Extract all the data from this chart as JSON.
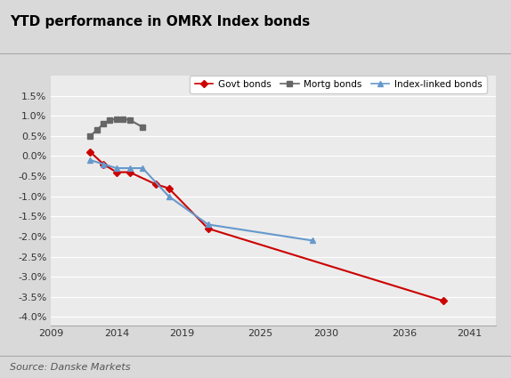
{
  "title": "YTD performance in OMRX Index bonds",
  "source": "Source: Danske Markets",
  "xlim": [
    2009,
    2043
  ],
  "ylim": [
    -0.042,
    0.02
  ],
  "xticks": [
    2009,
    2014,
    2019,
    2025,
    2030,
    2036,
    2041
  ],
  "yticks": [
    -0.04,
    -0.035,
    -0.03,
    -0.025,
    -0.02,
    -0.015,
    -0.01,
    -0.005,
    0.0,
    0.005,
    0.01,
    0.015
  ],
  "govt_bonds": {
    "x": [
      2012,
      2013,
      2014,
      2015,
      2017,
      2018,
      2021,
      2039
    ],
    "y": [
      0.001,
      -0.002,
      -0.004,
      -0.004,
      -0.007,
      -0.008,
      -0.018,
      -0.036
    ],
    "color": "#cc0000",
    "marker": "D",
    "markersize": 4,
    "linewidth": 1.5,
    "label": "Govt bonds"
  },
  "mortg_bonds": {
    "x": [
      2012,
      2012.5,
      2013,
      2013.5,
      2014,
      2014.5,
      2015,
      2016
    ],
    "y": [
      0.005,
      0.0065,
      0.008,
      0.009,
      0.0092,
      0.0092,
      0.009,
      0.0072
    ],
    "color": "#666666",
    "marker": "s",
    "markersize": 4,
    "linewidth": 1.5,
    "label": "Mortg bonds"
  },
  "index_linked_bonds": {
    "x": [
      2012,
      2013,
      2014,
      2015,
      2016,
      2018,
      2021,
      2029
    ],
    "y": [
      -0.001,
      -0.002,
      -0.003,
      -0.003,
      -0.003,
      -0.01,
      -0.017,
      -0.021
    ],
    "color": "#6699cc",
    "marker": "^",
    "markersize": 4,
    "linewidth": 1.5,
    "label": "Index-linked bonds"
  },
  "bg_color": "#d9d9d9",
  "plot_bg_color": "#ebebeb",
  "grid_color": "#ffffff",
  "spine_color": "#aaaaaa",
  "tick_label_color": "#333333",
  "title_fontsize": 11,
  "tick_fontsize": 8,
  "legend_fontsize": 7.5,
  "source_fontsize": 8
}
